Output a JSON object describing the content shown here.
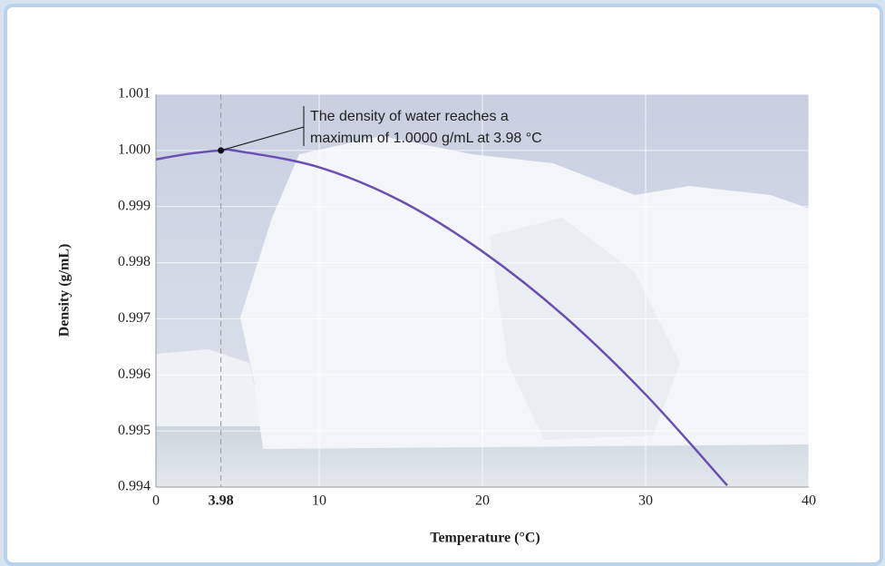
{
  "chart_data": {
    "type": "line",
    "x_label": "Temperature (°C)",
    "y_label": "Density (g/mL)",
    "x": [
      0,
      2,
      3.98,
      5,
      10,
      15,
      20,
      25,
      30,
      35
    ],
    "series": [
      {
        "color": "#6a4fb2",
        "values": [
          0.99984,
          0.99994,
          1.0,
          0.99999,
          0.9997,
          0.9991,
          0.9982,
          0.99705,
          0.99565,
          0.99403
        ]
      }
    ],
    "xlim": [
      0,
      40
    ],
    "xticks": [
      0,
      10,
      20,
      30,
      40
    ],
    "ylim": [
      0.994,
      1.001
    ],
    "yticks": [
      0.994,
      0.995,
      0.996,
      0.997,
      0.998,
      0.999,
      {
        "value": 1.0,
        "label": "1.000"
      },
      1.001
    ],
    "grid": true,
    "max_point": {
      "x": 3.98,
      "y": 1.0
    },
    "annotation": [
      "The density of water reaches a",
      "maximum of 1.0000 g/mL at 3.98 °C"
    ]
  }
}
